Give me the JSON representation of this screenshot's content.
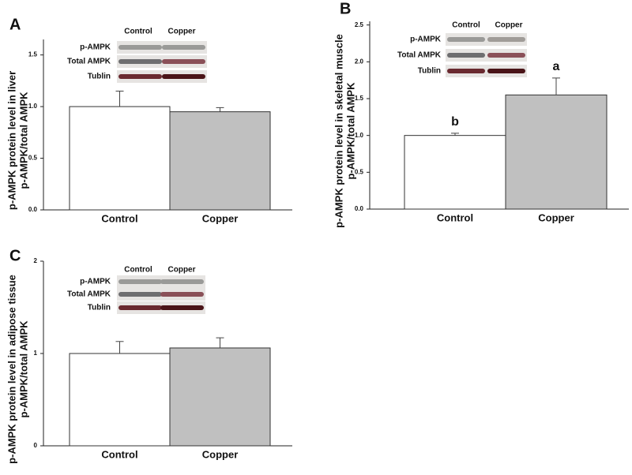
{
  "chart_data": [
    {
      "type": "bar",
      "panel": "A",
      "ylabel": [
        "p-AMPK protein level in liver",
        "p-AMPK/total AMPK"
      ],
      "categories": [
        "Control",
        "Copper"
      ],
      "values": [
        1.0,
        0.95
      ],
      "errors": [
        0.15,
        0.04
      ],
      "colors": [
        "#ffffff",
        "#c0c0c0"
      ],
      "ylim": [
        0,
        1.65
      ],
      "yticks": [
        {
          "value": 0,
          "label": "0.0"
        },
        0.5,
        {
          "value": 1,
          "label": "1.0"
        },
        1.5
      ],
      "blot": {
        "columns": [
          "Control",
          "Copper"
        ],
        "rows": [
          "p-AMPK",
          "Total AMPK",
          "Tublin"
        ]
      }
    },
    {
      "type": "bar",
      "panel": "B",
      "ylabel": [
        "p-AMPK protein level in skeletal muscle",
        "p-AMPK/total AMPK"
      ],
      "categories": [
        "Control",
        "Copper"
      ],
      "values": [
        1.0,
        1.55
      ],
      "errors": [
        0.03,
        0.23
      ],
      "colors": [
        "#ffffff",
        "#c0c0c0"
      ],
      "annotations": [
        "b",
        "a"
      ],
      "ylim": [
        0,
        2.55
      ],
      "yticks": [
        {
          "value": 0,
          "label": "0.0"
        },
        0.5,
        {
          "value": 1,
          "label": "1.0"
        },
        1.5,
        {
          "value": 2,
          "label": "2.0"
        },
        2.5
      ],
      "blot": {
        "columns": [
          "Control",
          "Copper"
        ],
        "rows": [
          "p-AMPK",
          "Total AMPK",
          "Tublin"
        ]
      }
    },
    {
      "type": "bar",
      "panel": "C",
      "ylabel": [
        "p-AMPK protein level in adipose tissue",
        "p-AMPK/total AMPK"
      ],
      "categories": [
        "Control",
        "Copper"
      ],
      "values": [
        1.0,
        1.06
      ],
      "errors": [
        0.13,
        0.11
      ],
      "colors": [
        "#ffffff",
        "#c0c0c0"
      ],
      "ylim": [
        0,
        2
      ],
      "yticks": [
        0,
        1,
        2
      ],
      "blot": {
        "columns": [
          "Control",
          "Copper"
        ],
        "rows": [
          "p-AMPK",
          "Total AMPK",
          "Tublin"
        ]
      }
    }
  ]
}
